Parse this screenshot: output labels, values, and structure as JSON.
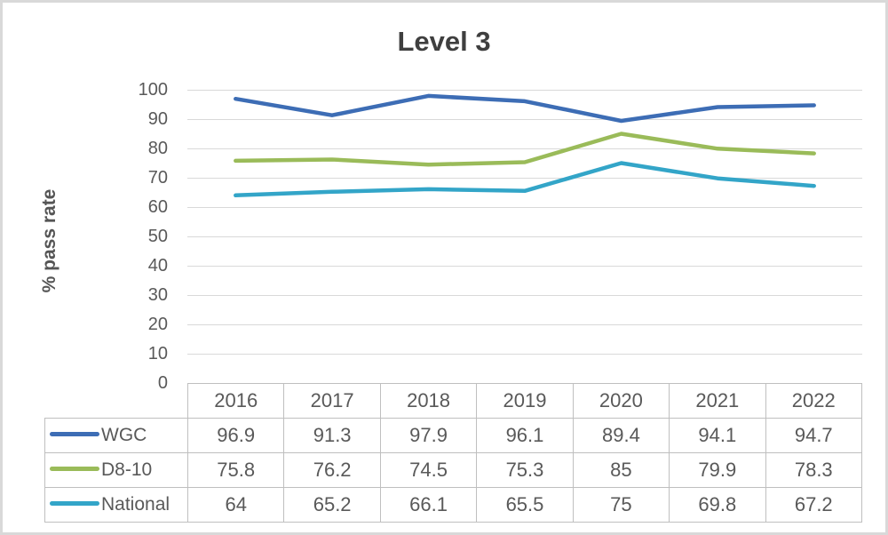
{
  "chart_data": {
    "type": "line",
    "title": "Level 3",
    "xlabel": "",
    "ylabel": "% pass rate",
    "categories": [
      "2016",
      "2017",
      "2018",
      "2019",
      "2020",
      "2021",
      "2022"
    ],
    "series": [
      {
        "name": "WGC",
        "color": "#3d6db5",
        "values": [
          96.9,
          91.3,
          97.9,
          96.1,
          89.4,
          94.1,
          94.7
        ]
      },
      {
        "name": "D8-10",
        "color": "#9abb59",
        "values": [
          75.8,
          76.2,
          74.5,
          75.3,
          85,
          79.9,
          78.3
        ]
      },
      {
        "name": "National",
        "color": "#33a5c8",
        "values": [
          64,
          65.2,
          66.1,
          65.5,
          75,
          69.8,
          67.2
        ]
      }
    ],
    "ylim": [
      0,
      100
    ],
    "y_tick_step": 10,
    "grid": true,
    "legend_position": "table-left"
  },
  "colors": {
    "gridline": "#d9d9d9",
    "table_border": "#bfbfbf",
    "axis_text": "#595959",
    "title_text": "#3f3f3f",
    "frame_border": "#d9d9d9",
    "background": "#ffffff"
  }
}
